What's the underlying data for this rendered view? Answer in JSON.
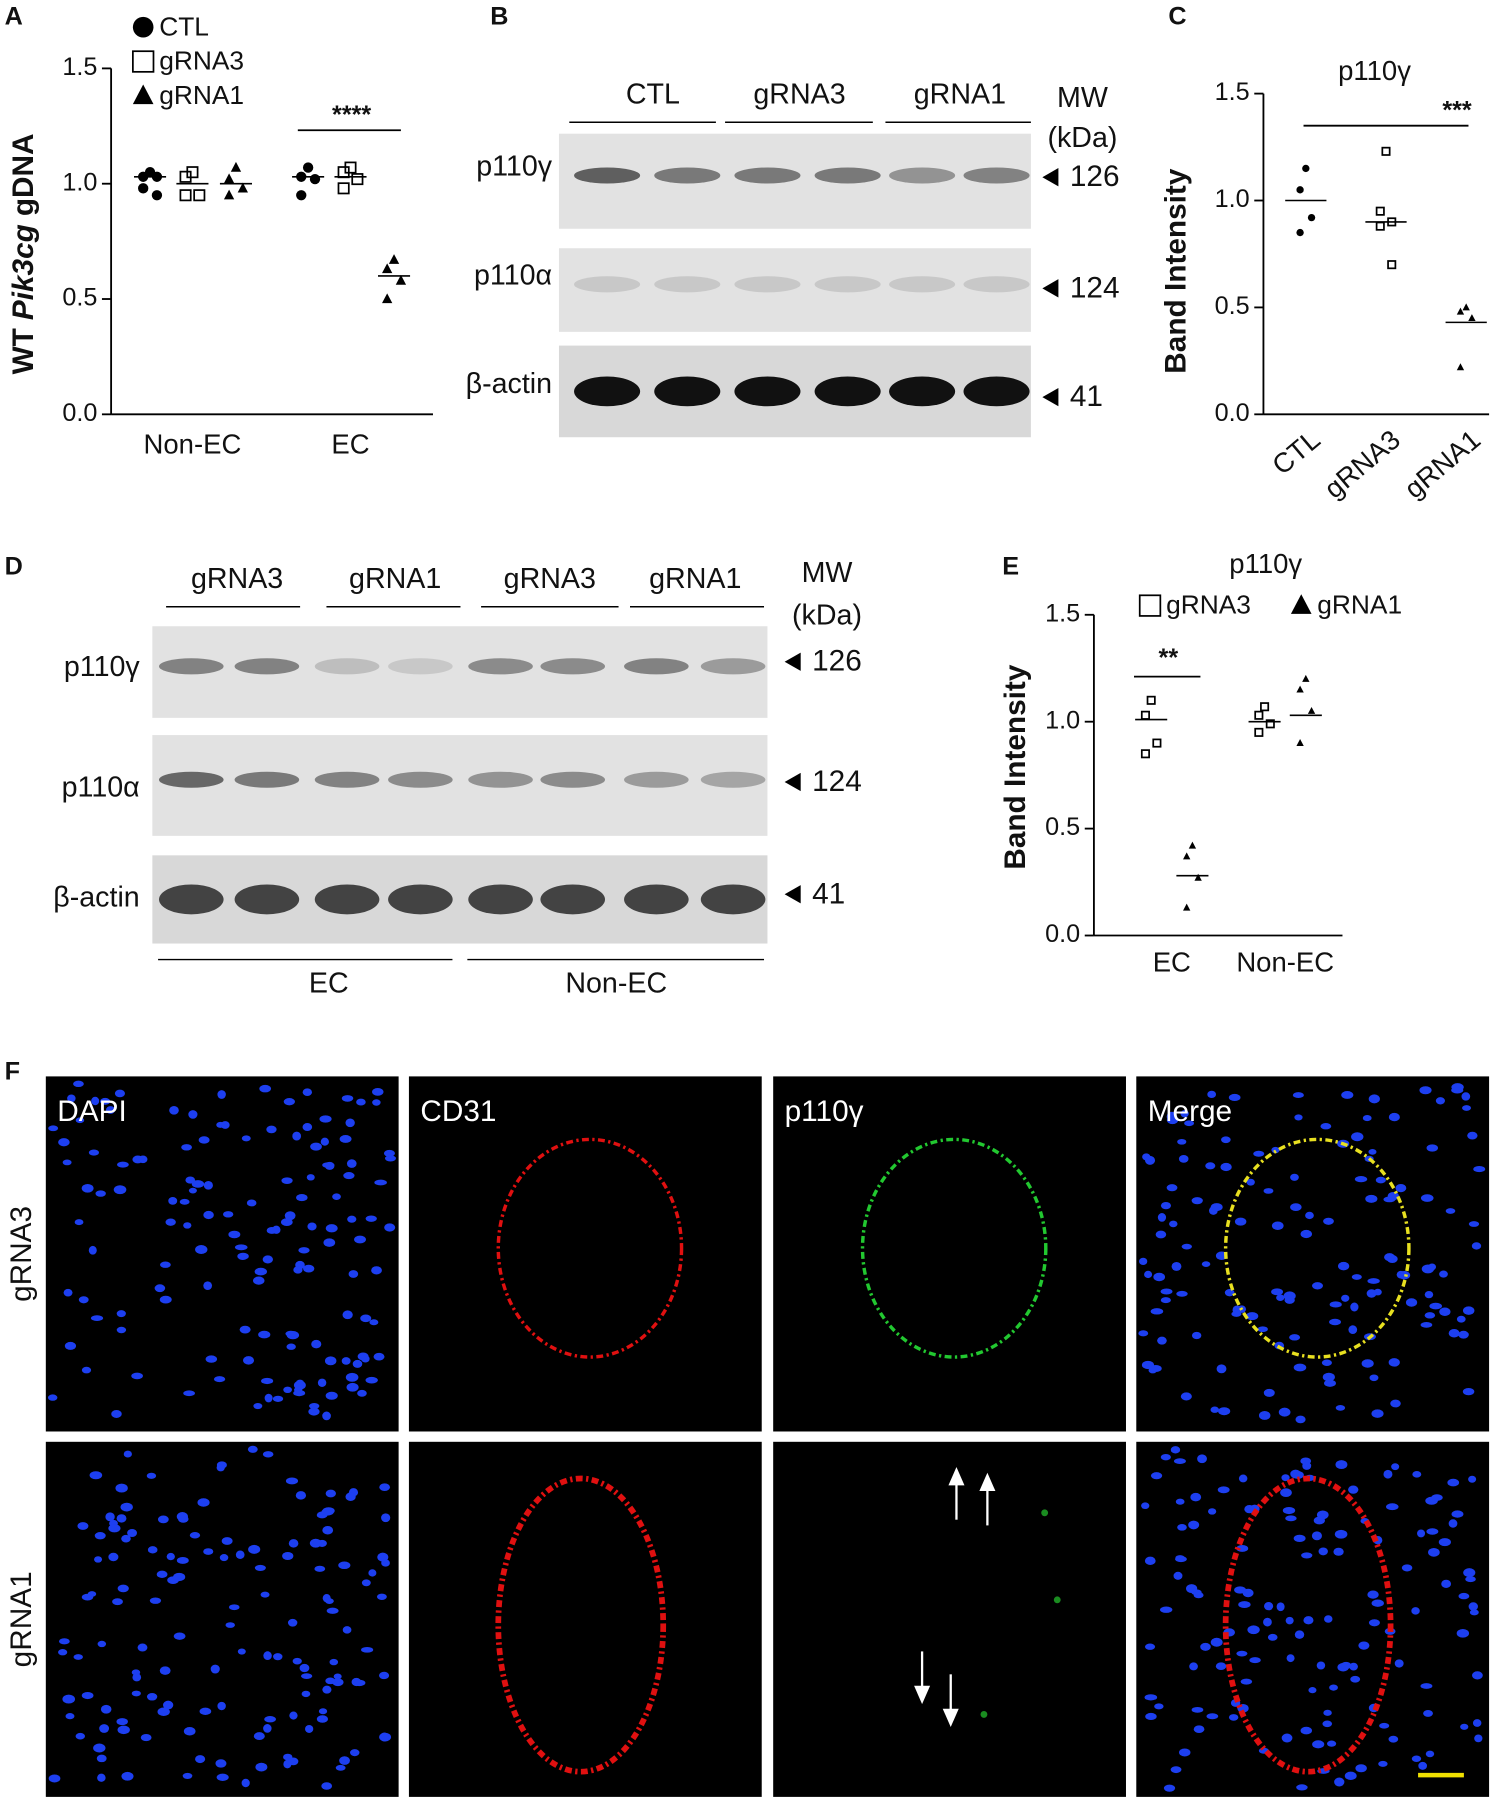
{
  "panel_labels": [
    "A",
    "B",
    "C",
    "D",
    "E",
    "F"
  ],
  "chart_data": [
    {
      "type": "dot",
      "y_label_parts": [
        "WT",
        "Pik3cg",
        "gDNA"
      ],
      "categories": [
        "Non-EC",
        "EC"
      ],
      "ylim": [
        0,
        1.5
      ],
      "yticks": [
        {
          "value": 0,
          "label": "0.0"
        },
        0.5,
        {
          "value": 1,
          "label": "1.0"
        },
        1.5
      ],
      "series": [
        {
          "name": "CTL",
          "marker": "circle",
          "color": "#000000",
          "values": [
            [
              1.05,
              1.03,
              1.03,
              0.98,
              0.95
            ],
            [
              1.07,
              1.03,
              1.02,
              0.95
            ]
          ],
          "means": [
            1.03,
            1.03
          ]
        },
        {
          "name": "gRNA3",
          "marker": "square",
          "color": "#000000",
          "values": [
            [
              1.05,
              1.03,
              0.95,
              0.95
            ],
            [
              1.07,
              1.05,
              1.02,
              0.98
            ]
          ],
          "means": [
            1.0,
            1.03
          ]
        },
        {
          "name": "gRNA1",
          "marker": "triangle",
          "color": "#000000",
          "values": [
            [
              1.07,
              1.02,
              0.98,
              0.95
            ],
            [
              0.67,
              0.63,
              0.58,
              0.5
            ]
          ],
          "means": [
            1.0,
            0.6
          ]
        }
      ],
      "annotations": [
        "****"
      ]
    },
    {
      "type": "dot",
      "title": "p110γ",
      "y_label": "Band Intensity",
      "categories": [
        "CTL",
        "gRNA3",
        "gRNA1"
      ],
      "ylim": [
        0,
        1.5
      ],
      "yticks": [
        {
          "value": 0,
          "label": "0.0"
        },
        0.5,
        {
          "value": 1,
          "label": "1.0"
        },
        1.5
      ],
      "series": [
        {
          "marker": "circle",
          "color": "#000000",
          "values": [
            [
              1.15,
              1.05,
              0.92,
              0.85
            ],
            null,
            null
          ],
          "means": [
            1.0,
            null,
            null
          ]
        },
        {
          "marker": "square",
          "color": "#000000",
          "values": [
            null,
            [
              1.23,
              0.95,
              0.9,
              0.88,
              0.7
            ],
            null
          ],
          "means": [
            null,
            0.9,
            null
          ]
        },
        {
          "marker": "triangle",
          "color": "#000000",
          "values": [
            null,
            null,
            [
              0.5,
              0.48,
              0.45,
              0.22
            ]
          ],
          "means": [
            null,
            null,
            0.43
          ]
        }
      ],
      "annotations": [
        "***"
      ]
    },
    {
      "type": "dot",
      "title": "p110γ",
      "y_label": "Band Intensity",
      "categories": [
        "EC",
        "Non-EC"
      ],
      "ylim": [
        0,
        1.5
      ],
      "yticks": [
        {
          "value": 0,
          "label": "0.0"
        },
        0.5,
        {
          "value": 1,
          "label": "1.0"
        },
        1.5
      ],
      "series": [
        {
          "name": "gRNA3",
          "marker": "square",
          "color": "#000000",
          "values": [
            [
              1.1,
              1.03,
              0.9,
              0.85
            ],
            [
              1.07,
              1.03,
              0.99,
              0.95
            ]
          ],
          "means": [
            1.01,
            1.0
          ]
        },
        {
          "name": "gRNA1",
          "marker": "triangle",
          "color": "#000000",
          "values": [
            [
              0.42,
              0.37,
              0.27,
              0.13
            ],
            [
              1.2,
              1.15,
              1.05,
              0.9
            ]
          ],
          "means": [
            0.28,
            1.03
          ]
        }
      ],
      "annotations": [
        "**"
      ]
    }
  ],
  "blots": [
    {
      "lane_groups": [
        "CTL",
        "gRNA3",
        "gRNA1"
      ],
      "mw_label": [
        "MW",
        "(kDa)"
      ],
      "rows": [
        {
          "label": "p110γ",
          "mw": 126
        },
        {
          "label": "p110α",
          "mw": 124
        },
        {
          "label": "β-actin",
          "mw": 41
        }
      ]
    },
    {
      "lane_groups": [
        "gRNA3",
        "gRNA1",
        "gRNA3",
        "gRNA1"
      ],
      "mw_label": [
        "MW",
        "(kDa)"
      ],
      "rows": [
        {
          "label": "p110γ",
          "mw": 126
        },
        {
          "label": "p110α",
          "mw": 124
        },
        {
          "label": "β-actin",
          "mw": 41
        }
      ],
      "sample_groups": [
        "EC",
        "Non-EC"
      ]
    }
  ],
  "micrographs": {
    "columns": [
      "DAPI",
      "CD31",
      "p110γ",
      "Merge"
    ],
    "rows": [
      "gRNA3",
      "gRNA1"
    ]
  }
}
